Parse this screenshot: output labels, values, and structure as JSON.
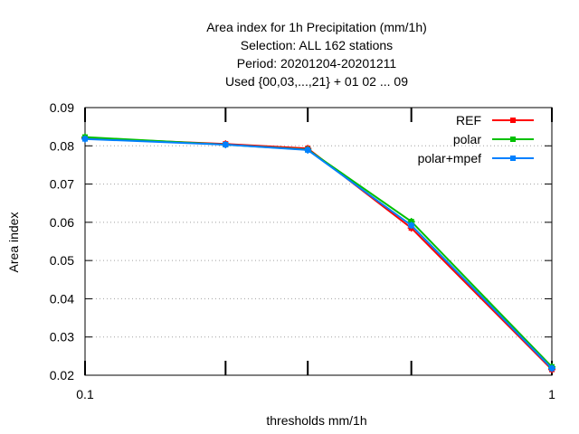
{
  "chart_data": {
    "type": "line",
    "title_lines": [
      "Area index  for 1h Precipitation (mm/1h)",
      "Selection: ALL    162 stations",
      "Period: 20201204-20201211",
      "Used {00,03,...,21} + 01 02 ... 09"
    ],
    "xlabel": "thresholds mm/1h",
    "ylabel": "Area index",
    "x_scale": "log",
    "xlim": [
      0.1,
      1
    ],
    "ylim": [
      0.02,
      0.09
    ],
    "x_ticks": [
      0.1,
      1
    ],
    "x_tick_labels": [
      "0.1",
      "1"
    ],
    "x_minor_ticks": [
      0.2,
      0.3,
      0.5
    ],
    "y_ticks": [
      0.02,
      0.03,
      0.04,
      0.05,
      0.06,
      0.07,
      0.08,
      0.09
    ],
    "y_tick_labels": [
      "0.02",
      "0.03",
      "0.04",
      "0.05",
      "0.06",
      "0.07",
      "0.08",
      "0.09"
    ],
    "grid": "horizontal-dotted",
    "legend_position": "top-right",
    "x": [
      0.1,
      0.2,
      0.3,
      0.5,
      1
    ],
    "series": [
      {
        "name": "REF",
        "color": "#ff0000",
        "values": [
          0.082,
          0.0805,
          0.0793,
          0.0585,
          0.0215
        ]
      },
      {
        "name": "polar",
        "color": "#00c000",
        "values": [
          0.0823,
          0.0803,
          0.079,
          0.0602,
          0.0222
        ]
      },
      {
        "name": "polar+mpef",
        "color": "#0080ff",
        "values": [
          0.0818,
          0.0803,
          0.0789,
          0.0592,
          0.0218
        ]
      }
    ]
  }
}
